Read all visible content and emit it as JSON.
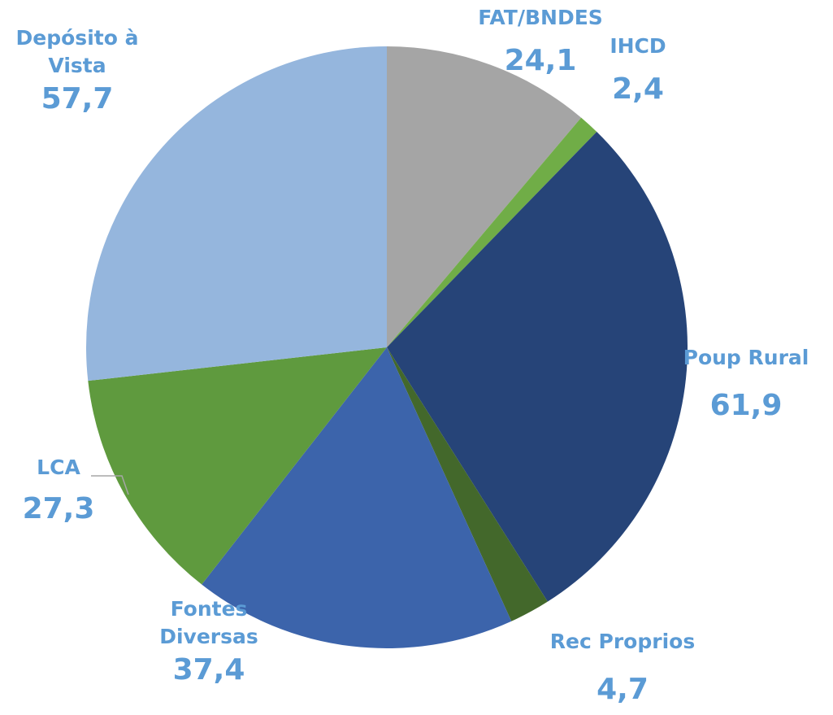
{
  "chart_data": {
    "type": "pie",
    "categories": [
      "FAT/BNDES",
      "IHCD",
      "Poup Rural",
      "Rec Proprios",
      "Fontes Diversas",
      "LCA",
      "Depósito à Vista"
    ],
    "values": [
      24.1,
      2.4,
      61.9,
      4.7,
      37.4,
      27.3,
      57.7
    ],
    "value_labels": [
      "24,1",
      "2,4",
      "61,9",
      "4,7",
      "37,4",
      "27,3",
      "57,7"
    ],
    "colors": [
      "#a5a5a5",
      "#70ad47",
      "#264478",
      "#43682b",
      "#3c64ab",
      "#5f9a3e",
      "#95b6dd"
    ]
  }
}
